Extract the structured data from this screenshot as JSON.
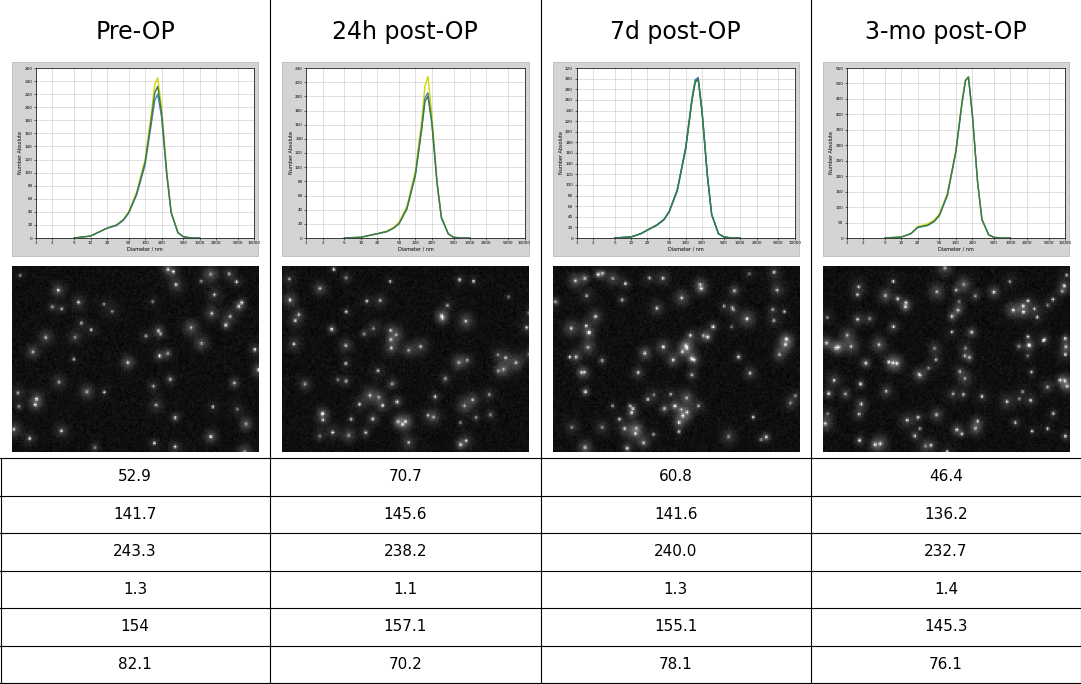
{
  "header": [
    "Pre-OP",
    "24h post-OP",
    "7d post-OP",
    "3-mo post-OP"
  ],
  "chart_data": [
    {
      "type": "line",
      "x_label": "Diameter / nm",
      "y_label": "Number Absolute",
      "log": "x",
      "grid": true,
      "x": [
        5,
        10,
        15,
        20,
        30,
        40,
        50,
        70,
        100,
        130,
        150,
        170,
        200,
        250,
        300,
        400,
        500,
        700,
        1000
      ],
      "series": [
        {
          "color": "#d6d600",
          "values": [
            0,
            3,
            10,
            15,
            20,
            28,
            40,
            70,
            120,
            190,
            235,
            245,
            200,
            100,
            40,
            8,
            2,
            0,
            0
          ]
        },
        {
          "color": "#4f81bd",
          "values": [
            0,
            3,
            10,
            15,
            19,
            27,
            38,
            66,
            112,
            175,
            210,
            220,
            185,
            95,
            38,
            8,
            2,
            0,
            0
          ]
        },
        {
          "color": "#3a7d44",
          "values": [
            0,
            3,
            10,
            15,
            20,
            28,
            39,
            68,
            116,
            182,
            222,
            232,
            192,
            98,
            39,
            8,
            2,
            0,
            0
          ]
        }
      ],
      "xlim": [
        1,
        10000
      ],
      "ylim": [
        0,
        260
      ],
      "xticks": [
        1,
        2,
        5,
        10,
        20,
        50,
        100,
        200,
        500,
        1000,
        2000,
        5000,
        10000
      ],
      "yticks": [
        0,
        20,
        40,
        60,
        80,
        100,
        120,
        140,
        160,
        180,
        200,
        220,
        240,
        260
      ]
    },
    {
      "type": "line",
      "x_label": "Diameter / nm",
      "y_label": "Number Absolute",
      "log": "x",
      "grid": true,
      "x": [
        5,
        10,
        15,
        20,
        30,
        40,
        50,
        70,
        100,
        130,
        150,
        170,
        200,
        250,
        300,
        400,
        500,
        700,
        1000
      ],
      "series": [
        {
          "color": "#d6d600",
          "values": [
            0,
            1,
            4,
            6,
            10,
            15,
            22,
            45,
            95,
            165,
            215,
            228,
            175,
            80,
            30,
            6,
            1,
            0,
            0
          ]
        },
        {
          "color": "#4f81bd",
          "values": [
            0,
            1,
            4,
            6,
            9,
            14,
            20,
            42,
            90,
            155,
            198,
            205,
            165,
            78,
            29,
            6,
            1,
            0,
            0
          ]
        },
        {
          "color": "#3a7d44",
          "values": [
            0,
            1,
            4,
            6,
            9,
            14,
            20,
            41,
            88,
            152,
            193,
            200,
            162,
            76,
            28,
            6,
            1,
            0,
            0
          ]
        }
      ],
      "xlim": [
        1,
        10000
      ],
      "ylim": [
        0,
        240
      ],
      "xticks": [
        1,
        2,
        5,
        10,
        20,
        50,
        100,
        200,
        500,
        1000,
        2000,
        5000,
        10000
      ],
      "yticks": [
        0,
        20,
        40,
        60,
        80,
        100,
        120,
        140,
        160,
        180,
        200,
        220,
        240
      ]
    },
    {
      "type": "line",
      "x_label": "Diameter / nm",
      "y_label": "Number Absolute",
      "log": "x",
      "grid": true,
      "x": [
        5,
        10,
        15,
        20,
        30,
        40,
        50,
        70,
        100,
        130,
        150,
        170,
        200,
        250,
        300,
        400,
        500,
        700,
        1000
      ],
      "series": [
        {
          "color": "#4f81bd",
          "values": [
            0,
            2,
            8,
            15,
            25,
            35,
            50,
            90,
            170,
            262,
            298,
            302,
            240,
            120,
            45,
            8,
            2,
            0,
            0
          ]
        },
        {
          "color": "#1f7a7a",
          "values": [
            0,
            2,
            8,
            15,
            25,
            35,
            50,
            90,
            168,
            258,
            295,
            300,
            238,
            118,
            44,
            8,
            2,
            0,
            0
          ]
        },
        {
          "color": "#3a7d44",
          "values": [
            0,
            2,
            8,
            15,
            24,
            34,
            49,
            88,
            166,
            256,
            293,
            298,
            236,
            117,
            44,
            8,
            2,
            0,
            0
          ]
        }
      ],
      "xlim": [
        1,
        10000
      ],
      "ylim": [
        0,
        320
      ],
      "xticks": [
        1,
        2,
        5,
        10,
        20,
        50,
        100,
        200,
        500,
        1000,
        2000,
        5000,
        10000
      ],
      "yticks": [
        0,
        20,
        40,
        60,
        80,
        100,
        120,
        140,
        160,
        180,
        200,
        220,
        240,
        260,
        280,
        300,
        320
      ]
    },
    {
      "type": "line",
      "x_label": "Diameter / nm",
      "y_label": "Number Absolute",
      "log": "x",
      "grid": true,
      "x": [
        5,
        10,
        15,
        20,
        30,
        40,
        50,
        70,
        100,
        130,
        150,
        170,
        200,
        250,
        300,
        400,
        500,
        700,
        1000
      ],
      "series": [
        {
          "color": "#d6d600",
          "values": [
            0,
            3,
            15,
            37,
            45,
            58,
            78,
            145,
            285,
            445,
            512,
            522,
            400,
            180,
            60,
            10,
            2,
            0,
            0
          ]
        },
        {
          "color": "#4f81bd",
          "values": [
            0,
            3,
            14,
            34,
            40,
            53,
            73,
            138,
            278,
            438,
            508,
            520,
            402,
            182,
            61,
            10,
            2,
            0,
            0
          ]
        },
        {
          "color": "#3a7d44",
          "values": [
            0,
            3,
            14,
            35,
            41,
            54,
            74,
            140,
            280,
            440,
            510,
            521,
            401,
            181,
            60,
            10,
            2,
            0,
            0
          ]
        }
      ],
      "xlim": [
        1,
        10000
      ],
      "ylim": [
        0,
        550
      ],
      "xticks": [
        1,
        2,
        5,
        10,
        20,
        50,
        100,
        200,
        500,
        1000,
        2000,
        5000,
        10000
      ],
      "yticks": [
        0,
        50,
        100,
        150,
        200,
        250,
        300,
        350,
        400,
        450,
        500,
        550
      ]
    }
  ],
  "rows": [
    [
      52.9,
      70.7,
      60.8,
      46.4
    ],
    [
      141.7,
      145.6,
      141.6,
      136.2
    ],
    [
      243.3,
      238.2,
      240.0,
      232.7
    ],
    [
      1.3,
      1.1,
      1.3,
      1.4
    ],
    [
      154,
      157.1,
      155.1,
      145.3
    ],
    [
      82.1,
      70.2,
      78.1,
      76.1
    ]
  ]
}
